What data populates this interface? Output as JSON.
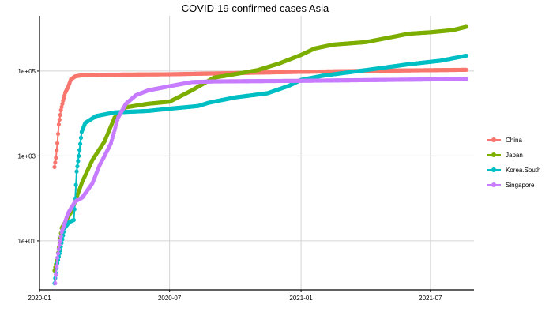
{
  "chart_data": {
    "type": "line",
    "title": "COVID-19 confirmed cases Asia",
    "xlabel": "",
    "ylabel": "",
    "y_scale": "log10",
    "ylim": [
      0.7,
      2000000
    ],
    "xlim": [
      "2020-01-01",
      "2021-08-31"
    ],
    "x_ticks": [
      {
        "date": "2020-01-01",
        "label": "2020-01"
      },
      {
        "date": "2020-07-01",
        "label": "2020-07"
      },
      {
        "date": "2021-01-01",
        "label": "2021-01"
      },
      {
        "date": "2021-07-01",
        "label": "2021-07"
      }
    ],
    "y_ticks": [
      {
        "value": 10,
        "label": "1e+01"
      },
      {
        "value": 1000,
        "label": "1e+03"
      },
      {
        "value": 100000,
        "label": "1e+05"
      }
    ],
    "grid": true,
    "legend_position": "right",
    "series": [
      {
        "name": "China",
        "color": "#F8766D",
        "points": [
          [
            "2020-01-22",
            548
          ],
          [
            "2020-01-24",
            900
          ],
          [
            "2020-01-26",
            2000
          ],
          [
            "2020-01-28",
            5500
          ],
          [
            "2020-01-31",
            12000
          ],
          [
            "2020-02-03",
            20000
          ],
          [
            "2020-02-06",
            31000
          ],
          [
            "2020-02-10",
            42000
          ],
          [
            "2020-02-14",
            64000
          ],
          [
            "2020-02-20",
            75000
          ],
          [
            "2020-03-01",
            80000
          ],
          [
            "2020-04-01",
            82000
          ],
          [
            "2020-07-01",
            84000
          ],
          [
            "2021-01-01",
            96000
          ],
          [
            "2021-04-01",
            101000
          ],
          [
            "2021-08-20",
            107000
          ]
        ]
      },
      {
        "name": "Japan",
        "color": "#7CAE00",
        "points": [
          [
            "2020-01-22",
            2
          ],
          [
            "2020-01-26",
            4
          ],
          [
            "2020-02-01",
            20
          ],
          [
            "2020-02-15",
            50
          ],
          [
            "2020-03-01",
            250
          ],
          [
            "2020-03-15",
            800
          ],
          [
            "2020-04-01",
            2200
          ],
          [
            "2020-04-15",
            8000
          ],
          [
            "2020-05-01",
            14000
          ],
          [
            "2020-06-01",
            17000
          ],
          [
            "2020-07-01",
            19000
          ],
          [
            "2020-07-15",
            25000
          ],
          [
            "2020-08-01",
            35000
          ],
          [
            "2020-09-01",
            70000
          ],
          [
            "2020-10-01",
            85000
          ],
          [
            "2020-11-01",
            105000
          ],
          [
            "2020-12-01",
            150000
          ],
          [
            "2021-01-01",
            240000
          ],
          [
            "2021-01-20",
            340000
          ],
          [
            "2021-02-15",
            420000
          ],
          [
            "2021-04-01",
            480000
          ],
          [
            "2021-05-01",
            600000
          ],
          [
            "2021-06-01",
            760000
          ],
          [
            "2021-07-01",
            820000
          ],
          [
            "2021-08-01",
            920000
          ],
          [
            "2021-08-20",
            1100000
          ]
        ]
      },
      {
        "name": "Korea.South",
        "color": "#00BFC4",
        "points": [
          [
            "2020-01-22",
            1
          ],
          [
            "2020-01-26",
            3
          ],
          [
            "2020-01-30",
            6
          ],
          [
            "2020-02-05",
            20
          ],
          [
            "2020-02-12",
            28
          ],
          [
            "2020-02-18",
            31
          ],
          [
            "2020-02-20",
            100
          ],
          [
            "2020-02-22",
            430
          ],
          [
            "2020-02-25",
            1000
          ],
          [
            "2020-02-29",
            3700
          ],
          [
            "2020-03-05",
            6000
          ],
          [
            "2020-03-20",
            8700
          ],
          [
            "2020-04-15",
            10600
          ],
          [
            "2020-06-01",
            11500
          ],
          [
            "2020-07-01",
            13000
          ],
          [
            "2020-08-10",
            15000
          ],
          [
            "2020-08-25",
            18000
          ],
          [
            "2020-10-01",
            24000
          ],
          [
            "2020-11-15",
            30000
          ],
          [
            "2020-12-15",
            45000
          ],
          [
            "2021-01-01",
            62000
          ],
          [
            "2021-02-01",
            78000
          ],
          [
            "2021-04-01",
            105000
          ],
          [
            "2021-06-01",
            145000
          ],
          [
            "2021-07-15",
            175000
          ],
          [
            "2021-08-20",
            230000
          ]
        ]
      },
      {
        "name": "Singapore",
        "color": "#C77CFF",
        "points": [
          [
            "2020-01-23",
            1
          ],
          [
            "2020-01-26",
            4
          ],
          [
            "2020-02-01",
            16
          ],
          [
            "2020-02-10",
            45
          ],
          [
            "2020-02-20",
            85
          ],
          [
            "2020-03-01",
            106
          ],
          [
            "2020-03-15",
            226
          ],
          [
            "2020-03-25",
            600
          ],
          [
            "2020-04-01",
            1000
          ],
          [
            "2020-04-10",
            2000
          ],
          [
            "2020-04-20",
            8000
          ],
          [
            "2020-05-01",
            17000
          ],
          [
            "2020-05-15",
            27000
          ],
          [
            "2020-06-01",
            35000
          ],
          [
            "2020-07-01",
            44000
          ],
          [
            "2020-08-01",
            55000
          ],
          [
            "2020-09-01",
            57000
          ],
          [
            "2021-01-01",
            59000
          ],
          [
            "2021-05-01",
            62000
          ],
          [
            "2021-08-20",
            65000
          ]
        ]
      }
    ]
  }
}
